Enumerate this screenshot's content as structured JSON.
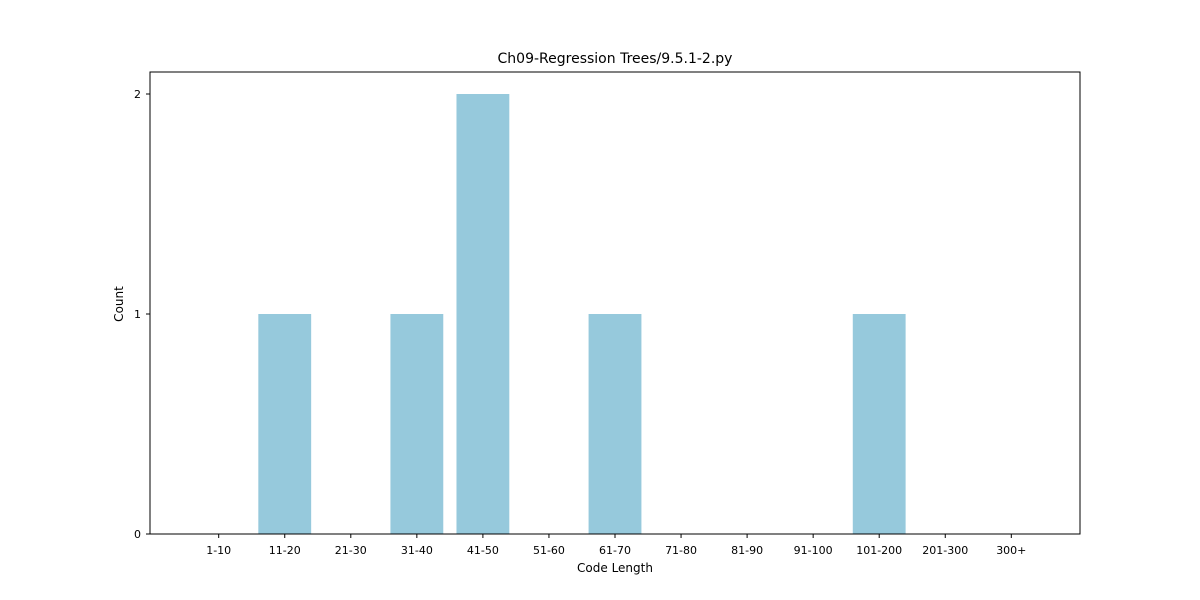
{
  "chart_data": {
    "type": "bar",
    "title": "Ch09-Regression Trees/9.5.1-2.py",
    "xlabel": "Code Length",
    "ylabel": "Count",
    "categories": [
      "1-10",
      "11-20",
      "21-30",
      "31-40",
      "41-50",
      "51-60",
      "61-70",
      "71-80",
      "81-90",
      "91-100",
      "101-200",
      "201-300",
      "300+"
    ],
    "values": [
      0,
      1,
      0,
      1,
      2,
      0,
      1,
      0,
      0,
      0,
      1,
      0,
      0
    ],
    "yticks": [
      0,
      1,
      2
    ],
    "ylim": [
      0,
      2.1
    ],
    "grid": false,
    "legend": "none",
    "bar_color": "#96c9dc"
  }
}
